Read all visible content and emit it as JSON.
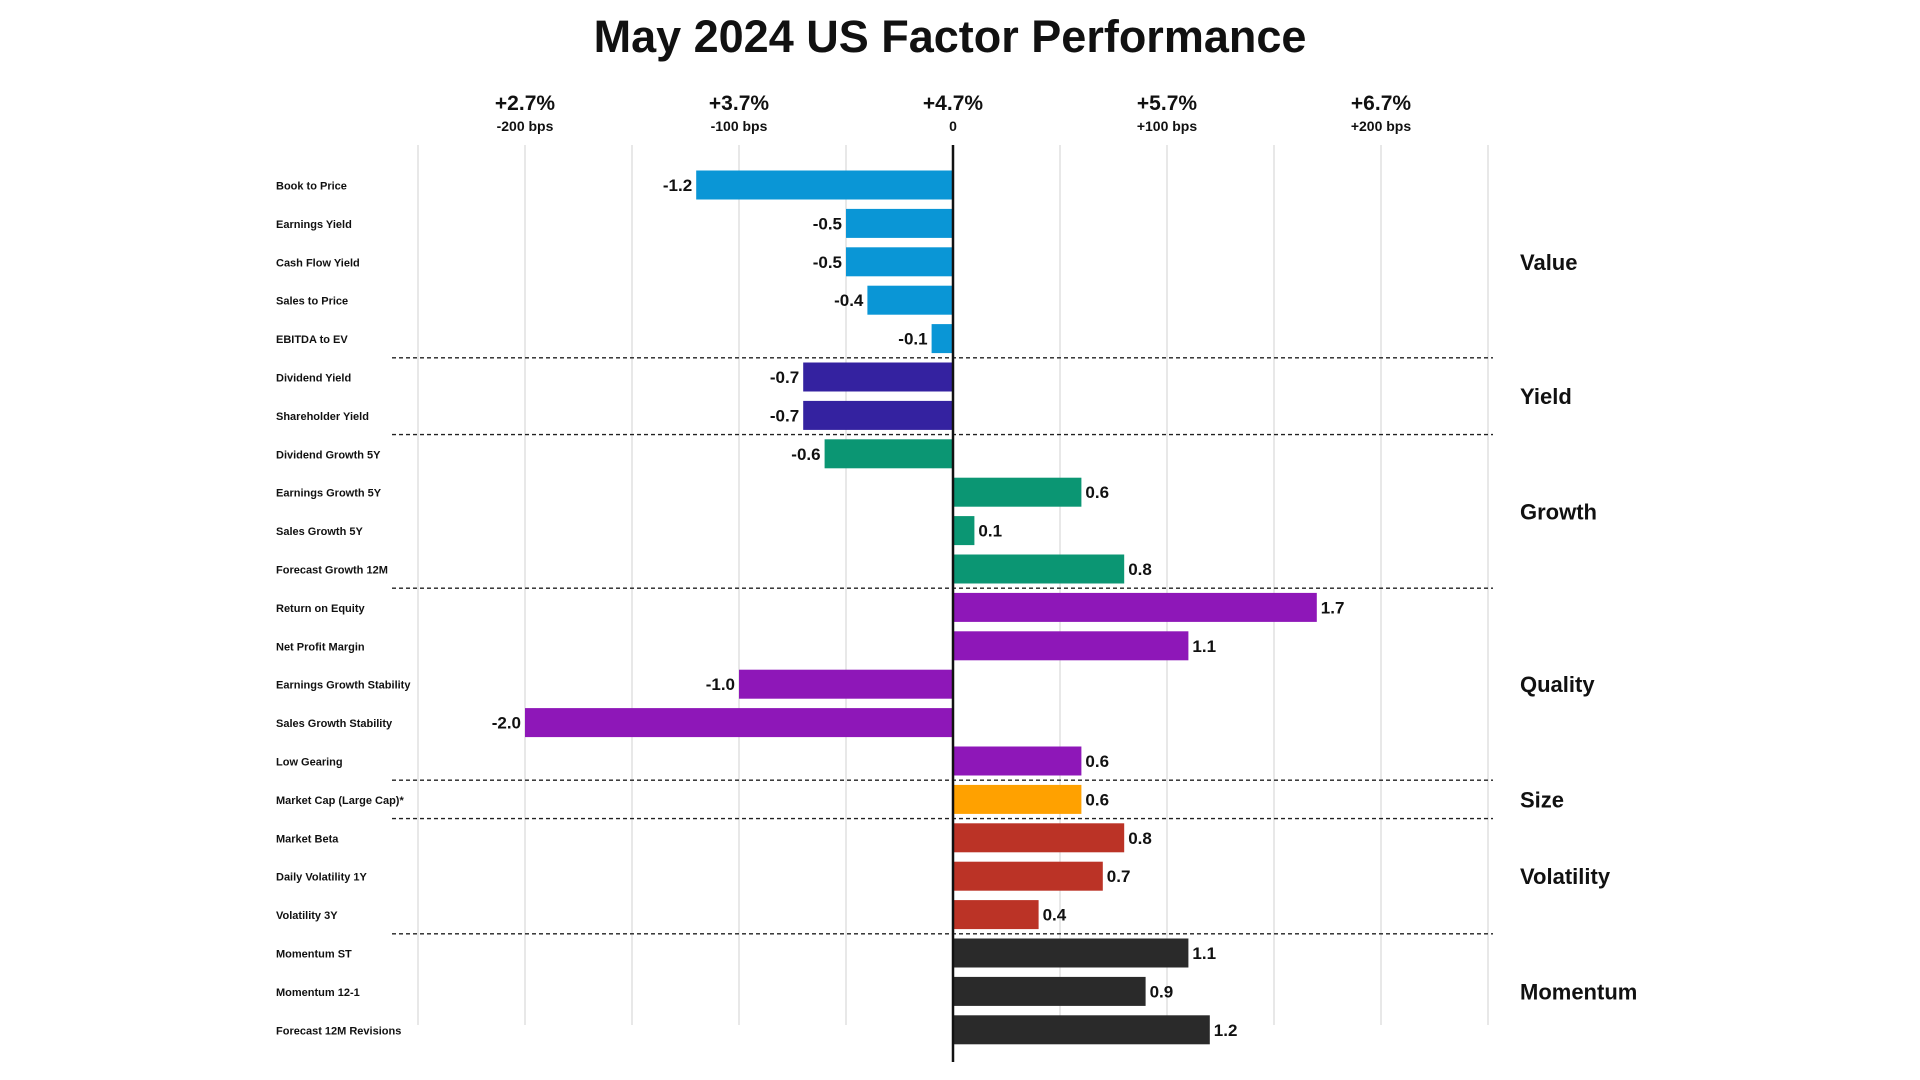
{
  "chart_data": {
    "type": "bar",
    "orientation": "horizontal",
    "title": "May 2024 US Factor Performance",
    "xlim": [
      -2.5,
      2.5
    ],
    "x_ticks": [
      {
        "value": -2,
        "label": "+2.7%",
        "sublabel": "-200 bps"
      },
      {
        "value": -1,
        "label": "+3.7%",
        "sublabel": "-100 bps"
      },
      {
        "value": 0,
        "label": "+4.7%",
        "sublabel": "0"
      },
      {
        "value": 1,
        "label": "+5.7%",
        "sublabel": "+100 bps"
      },
      {
        "value": 2,
        "label": "+6.7%",
        "sublabel": "+200 bps"
      }
    ],
    "grid": true,
    "groups": [
      {
        "name": "Value",
        "color": "#0a96d6",
        "items": [
          {
            "label": "Book to Price",
            "value": -1.2
          },
          {
            "label": "Earnings Yield",
            "value": -0.5
          },
          {
            "label": "Cash Flow Yield",
            "value": -0.5
          },
          {
            "label": "Sales to Price",
            "value": -0.4
          },
          {
            "label": "EBITDA to EV",
            "value": -0.1
          }
        ]
      },
      {
        "name": "Yield",
        "color": "#3422a0",
        "items": [
          {
            "label": "Dividend Yield",
            "value": -0.7
          },
          {
            "label": "Shareholder Yield",
            "value": -0.7
          }
        ]
      },
      {
        "name": "Growth",
        "color": "#0b9673",
        "items": [
          {
            "label": "Dividend Growth 5Y",
            "value": -0.6
          },
          {
            "label": "Earnings Growth 5Y",
            "value": 0.6
          },
          {
            "label": "Sales Growth 5Y",
            "value": 0.1
          },
          {
            "label": "Forecast Growth 12M",
            "value": 0.8
          }
        ]
      },
      {
        "name": "Quality",
        "color": "#8e17b8",
        "items": [
          {
            "label": "Return on Equity",
            "value": 1.7
          },
          {
            "label": "Net Profit Margin",
            "value": 1.1
          },
          {
            "label": "Earnings Growth Stability",
            "value": -1.0
          },
          {
            "label": "Sales Growth Stability",
            "value": -2.0
          },
          {
            "label": "Low Gearing",
            "value": 0.6
          }
        ]
      },
      {
        "name": "Size",
        "color": "#ffa100",
        "items": [
          {
            "label": "Market Cap (Large Cap)*",
            "value": 0.6
          }
        ]
      },
      {
        "name": "Volatility",
        "color": "#bb3326",
        "items": [
          {
            "label": "Market Beta",
            "value": 0.8
          },
          {
            "label": "Daily Volatility 1Y",
            "value": 0.7
          },
          {
            "label": "Volatility 3Y",
            "value": 0.4
          }
        ]
      },
      {
        "name": "Momentum",
        "color": "#2a2a2a",
        "items": [
          {
            "label": "Momentum ST",
            "value": 1.1
          },
          {
            "label": "Momentum 12-1",
            "value": 0.9
          },
          {
            "label": "Forecast 12M Revisions",
            "value": 1.2
          }
        ]
      }
    ]
  }
}
